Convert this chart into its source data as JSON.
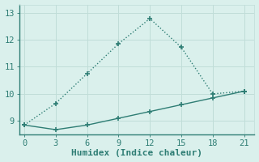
{
  "line1_x": [
    0,
    3,
    6,
    9,
    12,
    15,
    18,
    21
  ],
  "line1_y": [
    8.85,
    9.65,
    10.75,
    11.85,
    12.78,
    11.72,
    10.0,
    10.1
  ],
  "line2_x": [
    0,
    3,
    6,
    9,
    12,
    15,
    18,
    21
  ],
  "line2_y": [
    8.85,
    8.68,
    8.85,
    9.1,
    9.35,
    9.6,
    9.85,
    10.1
  ],
  "line_color": "#2e7d74",
  "bg_color": "#daf0ec",
  "grid_color": "#c0ddd8",
  "xlabel": "Humidex (Indice chaleur)",
  "xlim": [
    -0.5,
    22
  ],
  "ylim": [
    8.5,
    13.3
  ],
  "xticks": [
    0,
    3,
    6,
    9,
    12,
    15,
    18,
    21
  ],
  "yticks": [
    9,
    10,
    11,
    12,
    13
  ],
  "markersize": 4,
  "linewidth": 1.0,
  "xlabel_fontsize": 8,
  "tick_fontsize": 7.5
}
